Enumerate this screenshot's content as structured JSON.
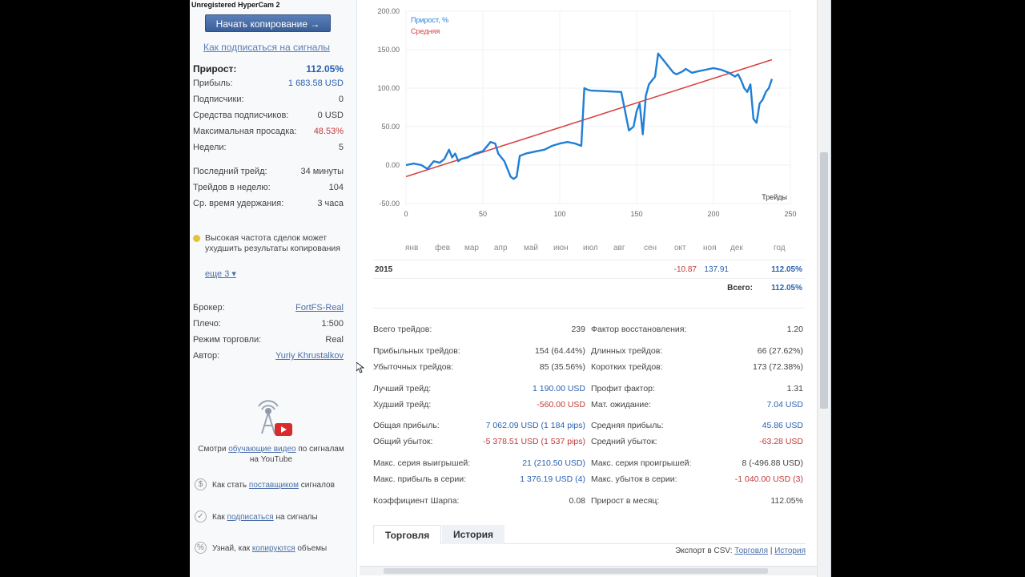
{
  "watermark": "Unregistered HyperCam 2",
  "left": {
    "copy_button": "Начать копирование →",
    "howto_link": "Как подписаться на сигналы",
    "stats": [
      {
        "label": "Прирост:",
        "value": "112.05%"
      },
      {
        "label": "Прибыль:",
        "value": "1 683.58 USD"
      },
      {
        "label": "Подписчики:",
        "value": "0"
      },
      {
        "label": "Средства подписчиков:",
        "value": "0 USD"
      },
      {
        "label": "Максимальная просадка:",
        "value": "48.53%"
      },
      {
        "label": "Недели:",
        "value": "5"
      },
      {
        "label": "Последний трейд:",
        "value": "34 минуты"
      },
      {
        "label": "Трейдов в неделю:",
        "value": "104"
      },
      {
        "label": "Ср. время удержания:",
        "value": "3 часа"
      }
    ],
    "warning": "Высокая частота сделок может ухудшить результаты копирования",
    "more": "еще 3 ▾",
    "broker": [
      {
        "label": "Брокер:",
        "value": "FortFS-Real"
      },
      {
        "label": "Плечо:",
        "value": "1:500"
      },
      {
        "label": "Режим торговли:",
        "value": "Real"
      },
      {
        "label": "Автор:",
        "value": "Yuriy Khrustalkov"
      }
    ],
    "yt_caption_1": "Смотри",
    "yt_caption_link": "обучающие видео",
    "yt_caption_2": "по сигналам на YouTube",
    "help": [
      {
        "pre": "Как стать",
        "link": "поставщиком",
        "post": "сигналов",
        "icon": "dollar-icon",
        "glyph": "$"
      },
      {
        "pre": "Как",
        "link": "подписаться",
        "post": "на сигналы",
        "icon": "cart-icon",
        "glyph": "✓"
      },
      {
        "pre": "Узнай, как",
        "link": "копируются",
        "post": "объемы",
        "icon": "percent-icon",
        "glyph": "%"
      }
    ]
  },
  "chart_data": {
    "type": "line",
    "title": "",
    "xlabel": "Трейды",
    "ylabel": "",
    "xlim": [
      0,
      250
    ],
    "ylim": [
      -50,
      200
    ],
    "xticks": [
      "0",
      "50",
      "100",
      "150",
      "200",
      "250"
    ],
    "yticks": [
      "-50.00",
      "0.00",
      "50.00",
      "100.00",
      "150.00",
      "200.00"
    ],
    "legend": [
      "Прирост, %",
      "Средняя"
    ],
    "colors": {
      "growth": "#1f7fd6",
      "average": "#d94040"
    },
    "series": [
      {
        "name": "Прирост, %",
        "x": [
          0,
          5,
          10,
          14,
          18,
          22,
          25,
          28,
          30,
          32,
          34,
          36,
          40,
          45,
          50,
          55,
          58,
          60,
          62,
          64,
          66,
          68,
          70,
          72,
          74,
          78,
          85,
          90,
          95,
          100,
          105,
          110,
          114,
          116,
          118,
          120,
          130,
          140,
          145,
          148,
          150,
          152,
          154,
          156,
          158,
          160,
          162,
          164,
          166,
          168,
          170,
          172,
          174,
          176,
          178,
          180,
          182,
          186,
          190,
          195,
          200,
          205,
          210,
          214,
          216,
          218,
          220,
          222,
          224,
          226,
          228,
          230,
          232,
          234,
          236,
          238
        ],
        "y": [
          0,
          2,
          0,
          -5,
          5,
          3,
          8,
          20,
          10,
          15,
          5,
          8,
          10,
          15,
          18,
          30,
          28,
          15,
          10,
          5,
          -5,
          -15,
          -18,
          -15,
          12,
          15,
          18,
          20,
          25,
          28,
          30,
          28,
          25,
          100,
          98,
          97,
          96,
          95,
          45,
          50,
          70,
          80,
          40,
          90,
          105,
          110,
          115,
          145,
          140,
          135,
          130,
          125,
          120,
          118,
          120,
          122,
          125,
          120,
          122,
          124,
          126,
          124,
          120,
          115,
          118,
          110,
          100,
          95,
          105,
          60,
          55,
          80,
          85,
          95,
          100,
          112
        ]
      },
      {
        "name": "Средняя",
        "x": [
          0,
          238
        ],
        "y": [
          -15,
          137
        ]
      }
    ]
  },
  "monthly": {
    "months": [
      "янв",
      "фев",
      "мар",
      "апр",
      "май",
      "июн",
      "июл",
      "авг",
      "сен",
      "окт",
      "ноя",
      "дек",
      "год"
    ],
    "year": "2015",
    "oct": "-10.87",
    "nov": "137.91",
    "year_total": "112.05%",
    "total_label": "Всего:",
    "total_value": "112.05%"
  },
  "stats_left": [
    {
      "label": "Всего трейдов:",
      "value": "239"
    },
    {
      "label": "Прибыльных трейдов:",
      "value": "154 (64.44%)"
    },
    {
      "label": "Убыточных трейдов:",
      "value": "85 (35.56%)"
    },
    {
      "label": "Лучший трейд:",
      "value": "1 190.00 USD"
    },
    {
      "label": "Худший трейд:",
      "value": "-560.00 USD"
    },
    {
      "label": "Общая прибыль:",
      "value": "7 062.09 USD (1 184 pips)"
    },
    {
      "label": "Общий убыток:",
      "value": "-5 378.51 USD (1 537 pips)"
    },
    {
      "label": "Макс. серия выигрышей:",
      "value": "21 (210.50 USD)"
    },
    {
      "label": "Макс. прибыль в серии:",
      "value": "1 376.19 USD (4)"
    },
    {
      "label": "Коэффициент Шарпа:",
      "value": "0.08"
    }
  ],
  "stats_right": [
    {
      "label": "Фактор восстановления:",
      "value": "1.20"
    },
    {
      "label": "Длинных трейдов:",
      "value": "66 (27.62%)"
    },
    {
      "label": "Коротких трейдов:",
      "value": "173 (72.38%)"
    },
    {
      "label": "Профит фактор:",
      "value": "1.31"
    },
    {
      "label": "Мат. ожидание:",
      "value": "7.04 USD"
    },
    {
      "label": "Средняя прибыль:",
      "value": "45.86 USD"
    },
    {
      "label": "Средний убыток:",
      "value": "-63.28 USD"
    },
    {
      "label": "Макс. серия проигрышей:",
      "value": "8 (-496.88 USD)"
    },
    {
      "label": "Макс. убыток в серии:",
      "value": "-1 040.00 USD (3)"
    },
    {
      "label": "Прирост в месяц:",
      "value": "112.05%"
    }
  ],
  "tabs": [
    "Торговля",
    "История"
  ],
  "export": {
    "label": "Экспорт в CSV:",
    "trade": "Торговля",
    "sep": "|",
    "history": "История"
  }
}
